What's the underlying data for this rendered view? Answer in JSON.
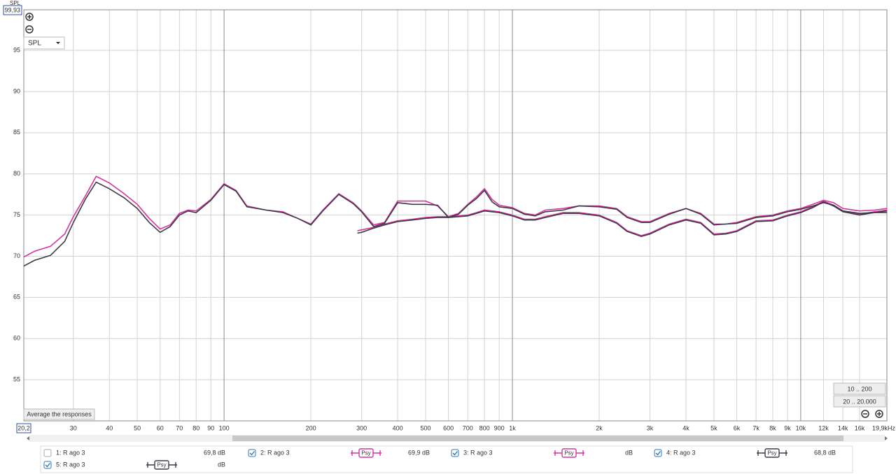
{
  "chart_data": {
    "type": "line",
    "ylabel": "SPL",
    "log_x": true,
    "grid": true,
    "xlim": [
      20.2,
      19900
    ],
    "ylim": [
      50,
      99.93
    ],
    "yticks": [
      55,
      60,
      65,
      70,
      75,
      80,
      85,
      90,
      95,
      {
        "value": 99.93,
        "label": "99,93"
      }
    ],
    "xticks": [
      {
        "value": 20.2,
        "label": "20,2"
      },
      30,
      40,
      50,
      60,
      70,
      80,
      90,
      100,
      200,
      300,
      400,
      500,
      600,
      700,
      800,
      900,
      {
        "value": 1000,
        "label": "1k"
      },
      {
        "value": 2000,
        "label": "2k"
      },
      {
        "value": 3000,
        "label": "3k"
      },
      {
        "value": 4000,
        "label": "4k"
      },
      {
        "value": 5000,
        "label": "5k"
      },
      {
        "value": 6000,
        "label": "6k"
      },
      {
        "value": 7000,
        "label": "7k"
      },
      {
        "value": 8000,
        "label": "8k"
      },
      {
        "value": 9000,
        "label": "9k"
      },
      {
        "value": 10000,
        "label": "10k"
      },
      {
        "value": 12000,
        "label": "12k"
      },
      {
        "value": 14000,
        "label": "14k"
      },
      {
        "value": 16000,
        "label": "16k"
      },
      {
        "value": 19900,
        "label": "19,9kHz"
      }
    ],
    "x": [
      20.2,
      22,
      25,
      28,
      30,
      33,
      36,
      40,
      45,
      50,
      55,
      60,
      65,
      70,
      75,
      80,
      90,
      100,
      110,
      120,
      140,
      160,
      180,
      200,
      220,
      250,
      280,
      290,
      300,
      330,
      360,
      400,
      450,
      500,
      550,
      600,
      650,
      700,
      750,
      800,
      850,
      900,
      1000,
      1100,
      1200,
      1300,
      1500,
      1700,
      2000,
      2300,
      2500,
      2800,
      3000,
      3500,
      4000,
      4500,
      5000,
      5500,
      6000,
      7000,
      8000,
      9000,
      10000,
      11000,
      12000,
      13000,
      14000,
      16000,
      18000,
      19900
    ],
    "series": [
      {
        "name": "1: R ago 3",
        "color": "#e08a00",
        "checked": false,
        "readout": "69,8 dB"
      },
      {
        "name": "2: R ago 3",
        "color": "#d4359f",
        "checked": true,
        "smoothing": "Psy",
        "readout": "69,9 dB",
        "values": [
          69.9,
          70.6,
          71.2,
          72.7,
          74.8,
          77.3,
          79.7,
          78.9,
          77.6,
          76.3,
          74.6,
          73.3,
          73.8,
          75.2,
          75.6,
          75.5,
          76.9,
          78.8,
          78.0,
          76.1,
          75.6,
          75.4,
          74.6,
          73.9,
          75.6,
          77.6,
          76.5,
          76.0,
          75.5,
          73.8,
          74.1,
          76.7,
          76.7,
          76.7,
          76.1,
          74.8,
          75.2,
          76.3,
          77.2,
          78.2,
          76.9,
          76.2,
          75.9,
          75.2,
          75.0,
          75.6,
          75.8,
          76.1,
          76.1,
          75.8,
          74.8,
          74.2,
          74.2,
          75.2,
          75.8,
          75.2,
          73.9,
          73.9,
          74.1,
          74.8,
          75.0,
          75.5,
          75.8,
          76.3,
          76.8,
          76.5,
          75.8,
          75.5,
          75.6,
          75.8
        ]
      },
      {
        "name": "3: R ago 3",
        "color": "#d4359f",
        "checked": true,
        "smoothing": "Psy",
        "readout": "dB",
        "values": [
          null,
          null,
          null,
          null,
          null,
          null,
          null,
          null,
          null,
          null,
          null,
          null,
          null,
          null,
          null,
          null,
          null,
          null,
          null,
          null,
          null,
          null,
          null,
          null,
          null,
          null,
          null,
          73.1,
          73.2,
          73.5,
          73.9,
          74.3,
          74.5,
          74.7,
          74.8,
          74.8,
          74.9,
          75.0,
          75.3,
          75.6,
          75.5,
          75.4,
          75.0,
          74.5,
          74.5,
          74.8,
          75.3,
          75.3,
          75.0,
          74.1,
          73.1,
          72.5,
          72.8,
          73.9,
          74.5,
          74.1,
          72.7,
          72.8,
          73.1,
          74.3,
          74.4,
          75.0,
          75.4,
          76.0,
          76.7,
          76.2,
          75.5,
          75.1,
          75.4,
          75.6
        ]
      },
      {
        "name": "4: R ago 3",
        "color": "#3c3c46",
        "checked": true,
        "smoothing": "Psy",
        "readout": "68,8 dB",
        "values": [
          68.8,
          69.5,
          70.1,
          71.8,
          74.1,
          76.9,
          79.0,
          78.2,
          77.1,
          75.8,
          74.1,
          72.9,
          73.6,
          75.0,
          75.5,
          75.3,
          76.8,
          78.7,
          77.9,
          76.0,
          75.6,
          75.3,
          74.6,
          73.8,
          75.5,
          77.5,
          76.4,
          75.9,
          75.4,
          73.6,
          74.0,
          76.5,
          76.3,
          76.3,
          76.2,
          74.7,
          75.1,
          76.2,
          77.0,
          78.0,
          76.6,
          76.0,
          75.8,
          75.1,
          74.9,
          75.4,
          75.6,
          76.1,
          76.0,
          75.7,
          74.7,
          74.1,
          74.1,
          75.1,
          75.8,
          75.1,
          73.8,
          73.9,
          74.0,
          74.7,
          74.9,
          75.4,
          75.7,
          76.1,
          76.5,
          76.2,
          75.5,
          75.2,
          75.3,
          75.3
        ]
      },
      {
        "name": "5: R ago 3",
        "color": "#3c3c46",
        "checked": true,
        "smoothing": "Psy",
        "readout": "dB",
        "values": [
          null,
          null,
          null,
          null,
          null,
          null,
          null,
          null,
          null,
          null,
          null,
          null,
          null,
          null,
          null,
          null,
          null,
          null,
          null,
          null,
          null,
          null,
          null,
          null,
          null,
          null,
          null,
          72.8,
          72.9,
          73.4,
          73.8,
          74.2,
          74.4,
          74.6,
          74.7,
          74.7,
          74.8,
          74.9,
          75.2,
          75.5,
          75.4,
          75.3,
          74.9,
          74.4,
          74.4,
          74.7,
          75.2,
          75.2,
          74.9,
          74.0,
          73.0,
          72.4,
          72.7,
          73.8,
          74.4,
          74.0,
          72.6,
          72.7,
          73.0,
          74.2,
          74.3,
          74.9,
          75.3,
          75.9,
          76.6,
          76.1,
          75.4,
          75.0,
          75.3,
          75.5
        ]
      }
    ]
  },
  "controls": {
    "dropdown": "SPL",
    "average_button": "Average the responses",
    "range_buttons": [
      "10 .. 200",
      "20 .. 20.000"
    ]
  }
}
